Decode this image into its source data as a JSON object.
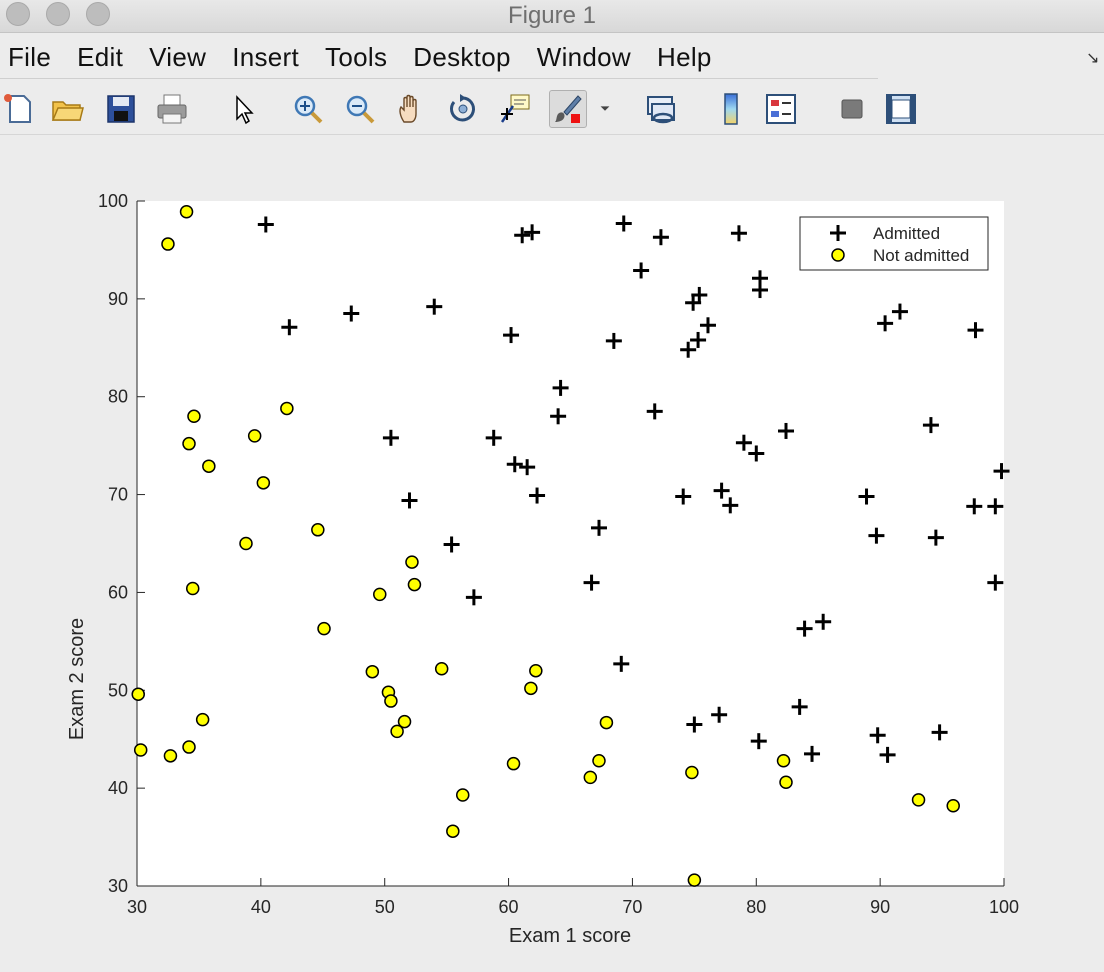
{
  "window": {
    "title": "Figure 1"
  },
  "menu": {
    "items": [
      "File",
      "Edit",
      "View",
      "Insert",
      "Tools",
      "Desktop",
      "Window",
      "Help"
    ]
  },
  "toolbar": {
    "icons": [
      "new-figure-icon",
      "open-file-icon",
      "save-icon",
      "print-icon",
      "pointer-icon",
      "zoom-in-icon",
      "zoom-out-icon",
      "pan-icon",
      "rotate-3d-icon",
      "data-cursor-icon",
      "brush-icon",
      "brush-dropdown-icon",
      "link-plot-icon",
      "colorbar-icon",
      "legend-icon",
      "hide-plot-tools-icon",
      "show-plot-tools-icon"
    ]
  },
  "chart_data": {
    "type": "scatter",
    "title": "",
    "xlabel": "Exam 1 score",
    "ylabel": "Exam 2 score",
    "xlim": [
      30,
      100
    ],
    "ylim": [
      30,
      100
    ],
    "xticks": [
      "30",
      "40",
      "50",
      "60",
      "70",
      "80",
      "90",
      "100"
    ],
    "yticks": [
      "30",
      "40",
      "50",
      "60",
      "70",
      "80",
      "90",
      "100"
    ],
    "grid": false,
    "legend": {
      "placement": "top-right",
      "entries": [
        "Admitted",
        "Not admitted"
      ]
    },
    "colors": {
      "admitted": "#000000",
      "not_admitted": "#ffff00"
    },
    "series": [
      {
        "name": "Admitted",
        "marker": "plus",
        "points": [
          [
            40.4,
            97.6
          ],
          [
            42.3,
            87.1
          ],
          [
            47.3,
            88.5
          ],
          [
            54.0,
            89.2
          ],
          [
            61.1,
            96.5
          ],
          [
            61.9,
            96.8
          ],
          [
            69.3,
            97.7
          ],
          [
            72.3,
            96.3
          ],
          [
            78.6,
            96.7
          ],
          [
            70.7,
            92.9
          ],
          [
            80.3,
            92.1
          ],
          [
            80.3,
            90.9
          ],
          [
            75.4,
            90.4
          ],
          [
            74.9,
            89.6
          ],
          [
            91.6,
            88.7
          ],
          [
            90.4,
            87.5
          ],
          [
            97.7,
            86.8
          ],
          [
            60.2,
            86.3
          ],
          [
            68.5,
            85.7
          ],
          [
            75.3,
            85.8
          ],
          [
            76.1,
            87.3
          ],
          [
            74.5,
            84.8
          ],
          [
            64.2,
            80.9
          ],
          [
            64.0,
            78.0
          ],
          [
            71.8,
            78.5
          ],
          [
            94.1,
            77.1
          ],
          [
            82.4,
            76.5
          ],
          [
            50.5,
            75.8
          ],
          [
            58.8,
            75.8
          ],
          [
            79.0,
            75.3
          ],
          [
            80.0,
            74.2
          ],
          [
            60.5,
            73.1
          ],
          [
            61.5,
            72.8
          ],
          [
            99.8,
            72.4
          ],
          [
            77.2,
            70.4
          ],
          [
            62.3,
            69.9
          ],
          [
            74.1,
            69.8
          ],
          [
            88.9,
            69.8
          ],
          [
            52.0,
            69.4
          ],
          [
            77.9,
            68.9
          ],
          [
            97.6,
            68.8
          ],
          [
            99.3,
            68.8
          ],
          [
            67.3,
            66.6
          ],
          [
            89.7,
            65.8
          ],
          [
            94.5,
            65.6
          ],
          [
            55.4,
            64.9
          ],
          [
            66.7,
            61.0
          ],
          [
            99.3,
            61.0
          ],
          [
            57.2,
            59.5
          ],
          [
            85.4,
            57.0
          ],
          [
            83.9,
            56.3
          ],
          [
            69.1,
            52.7
          ],
          [
            75.0,
            46.5
          ],
          [
            77.0,
            47.5
          ],
          [
            83.5,
            48.3
          ],
          [
            80.2,
            44.8
          ],
          [
            84.5,
            43.5
          ],
          [
            89.8,
            45.4
          ],
          [
            90.6,
            43.4
          ],
          [
            94.8,
            45.7
          ]
        ]
      },
      {
        "name": "Not admitted",
        "marker": "circle",
        "points": [
          [
            34.0,
            98.9
          ],
          [
            32.5,
            95.6
          ],
          [
            34.6,
            78.0
          ],
          [
            34.2,
            75.2
          ],
          [
            35.8,
            72.9
          ],
          [
            39.5,
            76.0
          ],
          [
            42.1,
            78.8
          ],
          [
            40.2,
            71.2
          ],
          [
            44.6,
            66.4
          ],
          [
            38.8,
            65.0
          ],
          [
            34.5,
            60.4
          ],
          [
            45.1,
            56.3
          ],
          [
            49.6,
            59.8
          ],
          [
            52.2,
            63.1
          ],
          [
            52.4,
            60.8
          ],
          [
            30.1,
            49.6
          ],
          [
            35.3,
            47.0
          ],
          [
            30.3,
            43.9
          ],
          [
            32.7,
            43.3
          ],
          [
            34.2,
            44.2
          ],
          [
            49.0,
            51.9
          ],
          [
            50.3,
            49.8
          ],
          [
            50.5,
            48.9
          ],
          [
            51.6,
            46.8
          ],
          [
            51.0,
            45.8
          ],
          [
            54.6,
            52.2
          ],
          [
            56.3,
            39.3
          ],
          [
            55.5,
            35.6
          ],
          [
            60.4,
            42.5
          ],
          [
            61.8,
            50.2
          ],
          [
            62.2,
            52.0
          ],
          [
            66.6,
            41.1
          ],
          [
            67.3,
            42.8
          ],
          [
            67.9,
            46.7
          ],
          [
            74.8,
            41.6
          ],
          [
            75.0,
            30.6
          ],
          [
            82.2,
            42.8
          ],
          [
            82.4,
            40.6
          ],
          [
            93.1,
            38.8
          ],
          [
            95.9,
            38.2
          ]
        ]
      }
    ]
  }
}
